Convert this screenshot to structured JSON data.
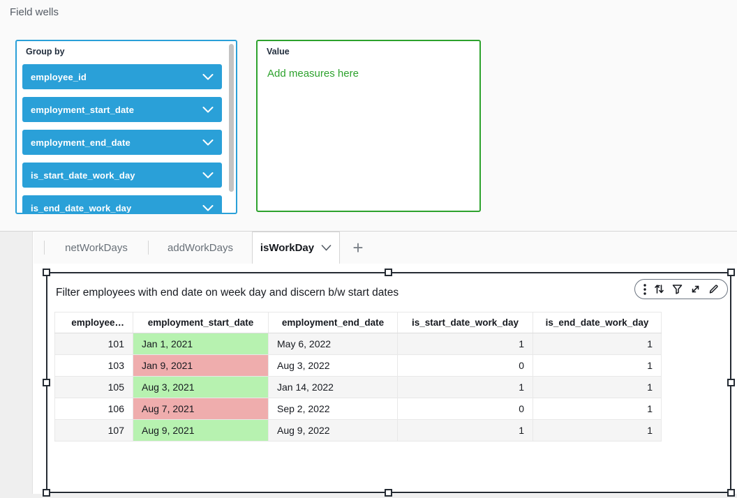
{
  "colors": {
    "accent_blue": "#2aa0d8",
    "accent_green": "#2da22d",
    "panel_label": "#232f3e",
    "selection_border": "#252b33",
    "tab_inactive_text": "#687078",
    "tab_active_text": "#16191f",
    "cell_green": "#b7f2b0",
    "cell_red": "#efadad"
  },
  "field_wells": {
    "title": "Field wells",
    "group_by": {
      "label": "Group by",
      "pills": [
        "employee_id",
        "employment_start_date",
        "employment_end_date",
        "is_start_date_work_day",
        "is_end_date_work_day"
      ]
    },
    "value": {
      "label": "Value",
      "empty_hint": "Add measures here"
    }
  },
  "sheet_tabs": {
    "tabs": [
      {
        "label": "netWorkDays",
        "active": false
      },
      {
        "label": "addWorkDays",
        "active": false
      },
      {
        "label": "isWorkDay",
        "active": true
      }
    ],
    "add_button": "+"
  },
  "visual": {
    "title": "Filter employees with end date on week day and discern b/w start dates",
    "toolbar_icons": [
      "kebab-menu",
      "sort-arrows",
      "filter-funnel",
      "expand-diagonal",
      "edit-pencil"
    ],
    "table": {
      "columns": [
        {
          "label": "employee…",
          "align": "right"
        },
        {
          "label": "employment_start_date",
          "align": "center"
        },
        {
          "label": "employment_end_date",
          "align": "center"
        },
        {
          "label": "is_start_date_work_day",
          "align": "center"
        },
        {
          "label": "is_end_date_work_day",
          "align": "center"
        }
      ],
      "cell_align": [
        "right",
        "left",
        "left",
        "right",
        "right"
      ],
      "rows": [
        {
          "cells": [
            "101",
            "Jan 1, 2021",
            "May 6, 2022",
            "1",
            "1"
          ],
          "start_date_highlight": "#b7f2b0"
        },
        {
          "cells": [
            "103",
            "Jan 9, 2021",
            "Aug 3, 2022",
            "0",
            "1"
          ],
          "start_date_highlight": "#efadad"
        },
        {
          "cells": [
            "105",
            "Aug 3, 2021",
            "Jan 14, 2022",
            "1",
            "1"
          ],
          "start_date_highlight": "#b7f2b0"
        },
        {
          "cells": [
            "106",
            "Aug 7, 2021",
            "Sep 2, 2022",
            "0",
            "1"
          ],
          "start_date_highlight": "#efadad"
        },
        {
          "cells": [
            "107",
            "Aug 9, 2021",
            "Aug 9, 2022",
            "1",
            "1"
          ],
          "start_date_highlight": "#b7f2b0"
        }
      ]
    }
  }
}
